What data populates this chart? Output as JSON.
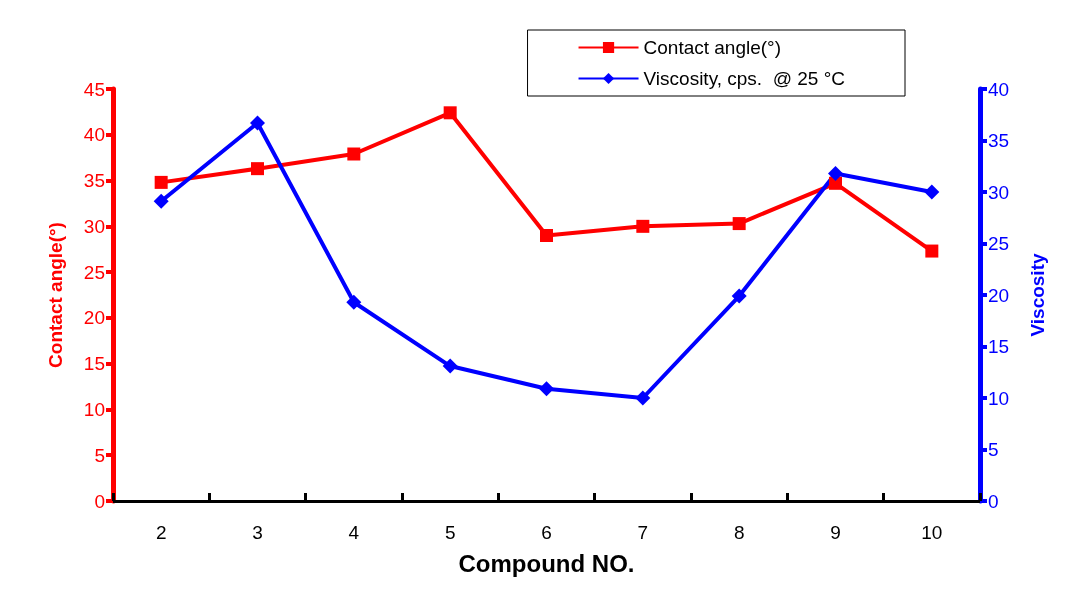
{
  "chart_data": {
    "type": "line",
    "xlabel": "Compound NO.",
    "ylabel": "Contact angle(°)",
    "y2label": "Viscosity",
    "categories": [
      "2",
      "3",
      "4",
      "5",
      "6",
      "7",
      "8",
      "9",
      "10"
    ],
    "series": [
      {
        "name": "Contact angle(°)",
        "color": "#ff0000",
        "marker": "square",
        "values": [
          34.8,
          36.3,
          37.9,
          42.4,
          29.0,
          30.0,
          30.3,
          34.7,
          27.3
        ]
      },
      {
        "name": "Viscosity, cps.  @ 25 °C",
        "color": "#0000ff",
        "marker": "diamond",
        "axis": "y2",
        "values": [
          29.1,
          36.7,
          19.3,
          13.1,
          10.9,
          10.0,
          19.9,
          31.8,
          30.0
        ]
      }
    ],
    "ylim": [
      0,
      45
    ],
    "yticks": [
      0,
      5,
      10,
      15,
      20,
      25,
      30,
      35,
      40,
      45
    ],
    "y2lim": [
      0,
      40
    ],
    "y2ticks": [
      0,
      5,
      10,
      15,
      20,
      25,
      30,
      35,
      40
    ],
    "grid": false,
    "legend": "top right",
    "line_style": "solid"
  }
}
